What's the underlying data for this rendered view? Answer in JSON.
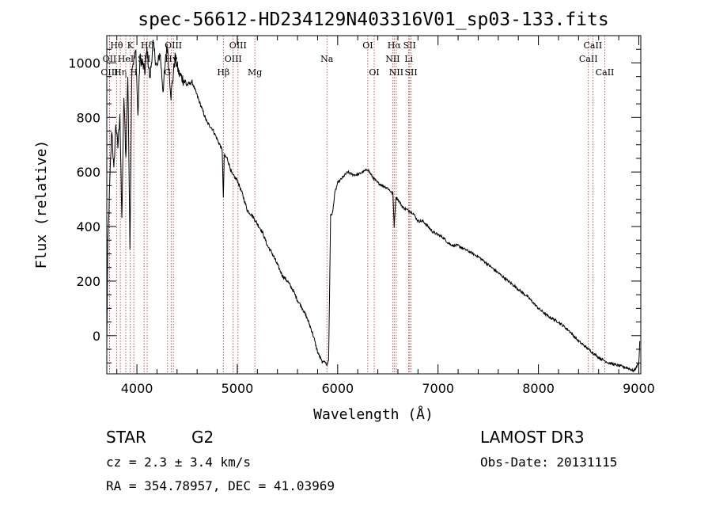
{
  "chart_data": {
    "type": "line",
    "title": "spec-56612-HD234129N403316V01_sp03-133.fits",
    "xlabel": "Wavelength (Å)",
    "ylabel": "Flux (relative)",
    "xlim": [
      3700,
      9020
    ],
    "ylim": [
      -140,
      1100
    ],
    "x_ticks": [
      4000,
      5000,
      6000,
      7000,
      8000,
      9000
    ],
    "y_ticks": [
      0,
      200,
      400,
      600,
      800,
      1000
    ],
    "series": [
      {
        "name": "flux",
        "x": [
          3700,
          3710,
          3730,
          3750,
          3770,
          3790,
          3810,
          3830,
          3850,
          3870,
          3890,
          3910,
          3930,
          3950,
          3970,
          3990,
          4010,
          4030,
          4060,
          4080,
          4100,
          4130,
          4160,
          4200,
          4230,
          4260,
          4300,
          4340,
          4380,
          4420,
          4460,
          4500,
          4550,
          4600,
          4650,
          4700,
          4750,
          4800,
          4850,
          4861,
          4870,
          4900,
          4950,
          5000,
          5050,
          5100,
          5150,
          5200,
          5250,
          5300,
          5350,
          5400,
          5450,
          5500,
          5550,
          5600,
          5650,
          5700,
          5750,
          5800,
          5850,
          5870,
          5890,
          5910,
          5930,
          5950,
          5970,
          6000,
          6050,
          6100,
          6150,
          6200,
          6250,
          6300,
          6350,
          6400,
          6450,
          6500,
          6550,
          6563,
          6580,
          6600,
          6650,
          6700,
          6750,
          6800,
          6850,
          6900,
          6950,
          7000,
          7050,
          7100,
          7150,
          7200,
          7300,
          7400,
          7500,
          7600,
          7700,
          7800,
          7900,
          8000,
          8100,
          8200,
          8300,
          8400,
          8500,
          8600,
          8700,
          8800,
          8900,
          8950,
          9000,
          9010
        ],
        "values": [
          -40,
          330,
          560,
          760,
          600,
          780,
          690,
          820,
          420,
          880,
          650,
          960,
          320,
          990,
          1010,
          1040,
          800,
          1020,
          990,
          970,
          1050,
          940,
          1070,
          980,
          1040,
          900,
          1070,
          880,
          1020,
          960,
          940,
          920,
          930,
          880,
          830,
          780,
          760,
          720,
          680,
          500,
          660,
          650,
          590,
          570,
          520,
          460,
          440,
          410,
          380,
          330,
          300,
          260,
          220,
          200,
          170,
          130,
          100,
          60,
          10,
          -60,
          -100,
          -90,
          -110,
          -90,
          440,
          450,
          520,
          560,
          580,
          600,
          590,
          590,
          600,
          610,
          580,
          560,
          550,
          540,
          520,
          400,
          510,
          500,
          470,
          460,
          450,
          420,
          420,
          400,
          380,
          370,
          360,
          340,
          330,
          330,
          310,
          290,
          260,
          230,
          200,
          170,
          140,
          100,
          70,
          50,
          20,
          -20,
          -50,
          -80,
          -100,
          -110,
          -120,
          -130,
          -100,
          -20
        ]
      }
    ],
    "spectral_lines": [
      {
        "label": "Hθ",
        "x": 3798,
        "row": 1
      },
      {
        "label": "OII",
        "x": 3727,
        "row": 2
      },
      {
        "label": "OIII",
        "x": 3727,
        "row": 3
      },
      {
        "label": "Hη",
        "x": 3835,
        "row": 3
      },
      {
        "label": "K",
        "x": 3934,
        "row": 1
      },
      {
        "label": "HeI",
        "x": 3889,
        "row": 2
      },
      {
        "label": "H",
        "x": 3969,
        "row": 3
      },
      {
        "label": "Hδ",
        "x": 4102,
        "row": 1
      },
      {
        "label": "SII",
        "x": 4072,
        "row": 2
      },
      {
        "label": "OIII",
        "x": 4363,
        "row": 1
      },
      {
        "label": "Hγ",
        "x": 4341,
        "row": 2
      },
      {
        "label": "G",
        "x": 4305,
        "row": 3
      },
      {
        "label": "OIII",
        "x": 5007,
        "row": 1
      },
      {
        "label": "OIII",
        "x": 4959,
        "row": 2
      },
      {
        "label": "Hβ",
        "x": 4861,
        "row": 3
      },
      {
        "label": "Mg",
        "x": 5175,
        "row": 3
      },
      {
        "label": "Na",
        "x": 5893,
        "row": 2
      },
      {
        "label": "OI",
        "x": 6300,
        "row": 1
      },
      {
        "label": "OI",
        "x": 6364,
        "row": 3
      },
      {
        "label": "Hα",
        "x": 6563,
        "row": 1
      },
      {
        "label": "NII",
        "x": 6548,
        "row": 2
      },
      {
        "label": "NII",
        "x": 6584,
        "row": 3
      },
      {
        "label": "SII",
        "x": 6717,
        "row": 1
      },
      {
        "label": "Li",
        "x": 6708,
        "row": 2
      },
      {
        "label": "SII",
        "x": 6731,
        "row": 3
      },
      {
        "label": "CaII",
        "x": 8542,
        "row": 1
      },
      {
        "label": "CaII",
        "x": 8498,
        "row": 2
      },
      {
        "label": "CaII",
        "x": 8662,
        "row": 3
      }
    ]
  },
  "info": {
    "object_class": "STAR",
    "subclass": "G2",
    "survey": "LAMOST DR3",
    "cz": "cz = 2.3 ± 3.4 km/s",
    "obs_date": "Obs-Date: 20131115",
    "coords": "RA = 354.78957, DEC =  41.03969"
  },
  "colors": {
    "line_marker": "#b03030",
    "spectrum": "#000000",
    "background": "#ffffff"
  }
}
